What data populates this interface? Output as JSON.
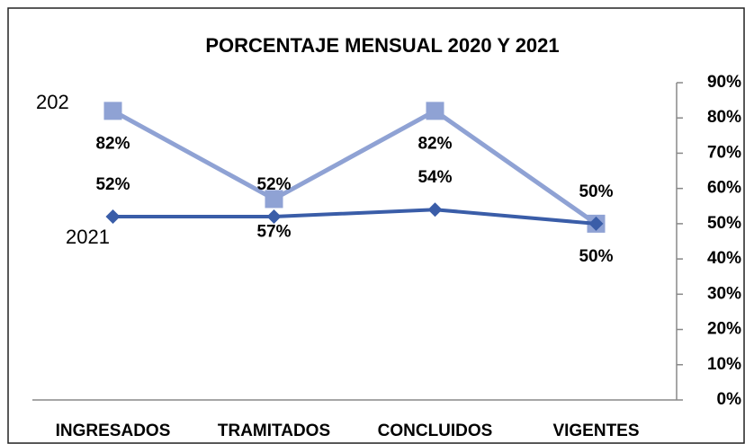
{
  "chart_data": {
    "type": "line",
    "title": "PORCENTAJE MENSUAL 2020 Y 2021",
    "categories": [
      "INGRESADOS",
      "TRAMITADOS",
      "CONCLUIDOS",
      "VIGENTES"
    ],
    "series": [
      {
        "name": "202",
        "color": "#8fa2d4",
        "marker": "square",
        "values": [
          82,
          57,
          82,
          50
        ],
        "value_labels": [
          "82%",
          "57%",
          "82%",
          "50%"
        ]
      },
      {
        "name": "2021",
        "color": "#3a5da8",
        "marker": "diamond",
        "values": [
          52,
          52,
          54,
          50
        ],
        "value_labels": [
          "52%",
          "52%",
          "54%",
          "50%"
        ]
      }
    ],
    "ylim": [
      0,
      90
    ],
    "yticks": [
      {
        "value": 0,
        "label": "0%"
      },
      {
        "value": 10,
        "label": "10%"
      },
      {
        "value": 20,
        "label": "20%"
      },
      {
        "value": 30,
        "label": "30%"
      },
      {
        "value": 40,
        "label": "40%"
      },
      {
        "value": 50,
        "label": "50%"
      },
      {
        "value": 60,
        "label": "60%"
      },
      {
        "value": 70,
        "label": "70%"
      },
      {
        "value": 80,
        "label": "80%"
      },
      {
        "value": 90,
        "label": "90%"
      }
    ],
    "y_axis_side": "right",
    "grid": false
  }
}
